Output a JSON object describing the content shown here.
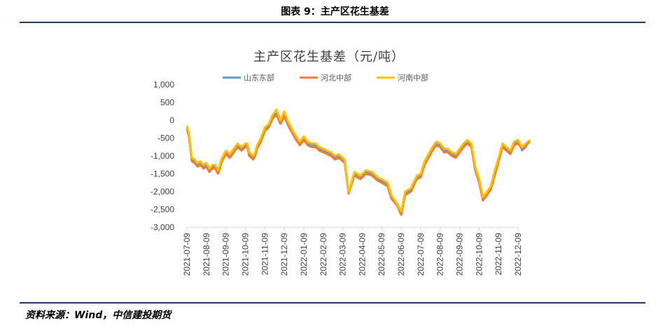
{
  "figure": {
    "caption": "图表 9：主产区花生基差",
    "source": "资料来源：Wind，中信建投期货"
  },
  "colors": {
    "rule": "#1f3864",
    "series": [
      "#5b9bd5",
      "#ed7d31",
      "#ffc000"
    ],
    "axis": "#d9d9d9"
  },
  "chart_data": {
    "type": "line",
    "title": "主产区花生基差（元/吨）",
    "xlabel": "",
    "ylabel": "",
    "ylim": [
      -3000,
      1000
    ],
    "yticks": [
      1000,
      500,
      0,
      -500,
      -1000,
      -1500,
      -2000,
      -2500,
      -3000
    ],
    "ytick_labels": [
      "1,000",
      "500",
      "0",
      "-500",
      "-1,000",
      "-1,500",
      "-2,000",
      "-2,500",
      "-3,000"
    ],
    "x_tick_labels": [
      "2021-07-09",
      "2021-08-09",
      "2021-09-09",
      "2021-10-09",
      "2021-11-09",
      "2021-12-09",
      "2022-01-09",
      "2022-02-09",
      "2022-03-09",
      "2022-04-09",
      "2022-05-09",
      "2022-06-09",
      "2022-07-09",
      "2022-08-09",
      "2022-09-09",
      "2022-10-09",
      "2022-11-09",
      "2022-12-09"
    ],
    "legend_position": "top",
    "series": [
      {
        "name": "山东东部",
        "points": [
          [
            0,
            -200
          ],
          [
            0.1,
            -400
          ],
          [
            0.25,
            -1100
          ],
          [
            0.4,
            -1150
          ],
          [
            0.55,
            -1250
          ],
          [
            0.7,
            -1200
          ],
          [
            0.85,
            -1300
          ],
          [
            1.0,
            -1250
          ],
          [
            1.15,
            -1400
          ],
          [
            1.3,
            -1300
          ],
          [
            1.45,
            -1300
          ],
          [
            1.6,
            -1450
          ],
          [
            1.8,
            -1100
          ],
          [
            2.0,
            -900
          ],
          [
            2.2,
            -1000
          ],
          [
            2.4,
            -850
          ],
          [
            2.6,
            -700
          ],
          [
            2.8,
            -800
          ],
          [
            3.0,
            -700
          ],
          [
            3.1,
            -700
          ],
          [
            3.2,
            -950
          ],
          [
            3.4,
            -1050
          ],
          [
            3.5,
            -950
          ],
          [
            3.6,
            -750
          ],
          [
            3.8,
            -550
          ],
          [
            4.0,
            -250
          ],
          [
            4.2,
            -150
          ],
          [
            4.4,
            100
          ],
          [
            4.6,
            200
          ],
          [
            4.8,
            -50
          ],
          [
            5.0,
            150
          ],
          [
            5.2,
            -100
          ],
          [
            5.4,
            -300
          ],
          [
            5.6,
            -500
          ],
          [
            5.8,
            -650
          ],
          [
            6.0,
            -500
          ],
          [
            6.2,
            -650
          ],
          [
            6.4,
            -700
          ],
          [
            6.6,
            -700
          ],
          [
            6.8,
            -800
          ],
          [
            7.0,
            -850
          ],
          [
            7.2,
            -900
          ],
          [
            7.4,
            -950
          ],
          [
            7.6,
            -1050
          ],
          [
            7.8,
            -1000
          ],
          [
            8.0,
            -1100
          ],
          [
            8.1,
            -1150
          ],
          [
            8.3,
            -2050
          ],
          [
            8.6,
            -1500
          ],
          [
            8.9,
            -1600
          ],
          [
            9.2,
            -1450
          ],
          [
            9.5,
            -1500
          ],
          [
            9.8,
            -1650
          ],
          [
            10.0,
            -1700
          ],
          [
            10.3,
            -1800
          ],
          [
            10.5,
            -2150
          ],
          [
            10.8,
            -2350
          ],
          [
            11.0,
            -2650
          ],
          [
            11.2,
            -2050
          ],
          [
            11.5,
            -1950
          ],
          [
            11.8,
            -1600
          ],
          [
            12.0,
            -1550
          ],
          [
            12.2,
            -1200
          ],
          [
            12.4,
            -1000
          ],
          [
            12.6,
            -800
          ],
          [
            12.8,
            -650
          ],
          [
            13.0,
            -700
          ],
          [
            13.2,
            -850
          ],
          [
            13.4,
            -850
          ],
          [
            13.6,
            -950
          ],
          [
            13.8,
            -1000
          ],
          [
            14.0,
            -850
          ],
          [
            14.2,
            -700
          ],
          [
            14.4,
            -600
          ],
          [
            14.6,
            -700
          ],
          [
            14.8,
            -1350
          ],
          [
            15.0,
            -1700
          ],
          [
            15.2,
            -2200
          ],
          [
            15.4,
            -2050
          ],
          [
            15.6,
            -1900
          ],
          [
            15.8,
            -1500
          ],
          [
            16.0,
            -1100
          ],
          [
            16.2,
            -700
          ],
          [
            16.4,
            -800
          ],
          [
            16.6,
            -900
          ],
          [
            16.8,
            -650
          ],
          [
            17.0,
            -600
          ],
          [
            17.2,
            -850
          ],
          [
            17.4,
            -750
          ],
          [
            17.6,
            -550
          ]
        ]
      },
      {
        "name": "河北中部",
        "points": [
          [
            0,
            -250
          ],
          [
            0.1,
            -450
          ],
          [
            0.25,
            -1150
          ],
          [
            0.4,
            -1200
          ],
          [
            0.55,
            -1300
          ],
          [
            0.7,
            -1250
          ],
          [
            0.85,
            -1350
          ],
          [
            1.0,
            -1300
          ],
          [
            1.15,
            -1450
          ],
          [
            1.3,
            -1350
          ],
          [
            1.45,
            -1350
          ],
          [
            1.6,
            -1500
          ],
          [
            1.8,
            -1150
          ],
          [
            2.0,
            -950
          ],
          [
            2.2,
            -1050
          ],
          [
            2.4,
            -900
          ],
          [
            2.6,
            -750
          ],
          [
            2.8,
            -850
          ],
          [
            3.0,
            -750
          ],
          [
            3.1,
            -750
          ],
          [
            3.2,
            -1000
          ],
          [
            3.4,
            -1100
          ],
          [
            3.5,
            -1000
          ],
          [
            3.6,
            -800
          ],
          [
            3.8,
            -600
          ],
          [
            4.0,
            -300
          ],
          [
            4.2,
            -200
          ],
          [
            4.4,
            50
          ],
          [
            4.6,
            150
          ],
          [
            4.8,
            -100
          ],
          [
            5.0,
            100
          ],
          [
            5.2,
            -150
          ],
          [
            5.4,
            -350
          ],
          [
            5.6,
            -550
          ],
          [
            5.8,
            -700
          ],
          [
            6.0,
            -550
          ],
          [
            6.2,
            -700
          ],
          [
            6.4,
            -750
          ],
          [
            6.6,
            -750
          ],
          [
            6.8,
            -850
          ],
          [
            7.0,
            -900
          ],
          [
            7.2,
            -950
          ],
          [
            7.4,
            -1000
          ],
          [
            7.6,
            -1100
          ],
          [
            7.8,
            -1050
          ],
          [
            8.0,
            -1150
          ],
          [
            8.1,
            -1200
          ],
          [
            8.3,
            -2050
          ],
          [
            8.6,
            -1550
          ],
          [
            8.9,
            -1650
          ],
          [
            9.2,
            -1500
          ],
          [
            9.5,
            -1550
          ],
          [
            9.8,
            -1700
          ],
          [
            10.0,
            -1750
          ],
          [
            10.3,
            -1850
          ],
          [
            10.5,
            -2200
          ],
          [
            10.8,
            -2400
          ],
          [
            11.0,
            -2650
          ],
          [
            11.2,
            -2100
          ],
          [
            11.5,
            -2000
          ],
          [
            11.8,
            -1650
          ],
          [
            12.0,
            -1600
          ],
          [
            12.2,
            -1250
          ],
          [
            12.4,
            -1050
          ],
          [
            12.6,
            -850
          ],
          [
            12.8,
            -700
          ],
          [
            13.0,
            -750
          ],
          [
            13.2,
            -900
          ],
          [
            13.4,
            -900
          ],
          [
            13.6,
            -1000
          ],
          [
            13.8,
            -1050
          ],
          [
            14.0,
            -900
          ],
          [
            14.2,
            -750
          ],
          [
            14.4,
            -650
          ],
          [
            14.6,
            -750
          ],
          [
            14.8,
            -1400
          ],
          [
            15.0,
            -1750
          ],
          [
            15.2,
            -2250
          ],
          [
            15.4,
            -2100
          ],
          [
            15.6,
            -1950
          ],
          [
            15.8,
            -1550
          ],
          [
            16.0,
            -1150
          ],
          [
            16.2,
            -750
          ],
          [
            16.4,
            -850
          ],
          [
            16.6,
            -950
          ],
          [
            16.8,
            -700
          ],
          [
            17.0,
            -650
          ],
          [
            17.2,
            -800
          ],
          [
            17.4,
            -700
          ],
          [
            17.6,
            -600
          ]
        ]
      },
      {
        "name": "河南中部",
        "points": [
          [
            0,
            -150
          ],
          [
            0.1,
            -350
          ],
          [
            0.25,
            -1050
          ],
          [
            0.4,
            -1100
          ],
          [
            0.55,
            -1200
          ],
          [
            0.7,
            -1150
          ],
          [
            0.85,
            -1250
          ],
          [
            1.0,
            -1200
          ],
          [
            1.15,
            -1350
          ],
          [
            1.3,
            -1250
          ],
          [
            1.45,
            -1250
          ],
          [
            1.6,
            -1400
          ],
          [
            1.8,
            -1050
          ],
          [
            2.0,
            -850
          ],
          [
            2.2,
            -950
          ],
          [
            2.4,
            -800
          ],
          [
            2.6,
            -650
          ],
          [
            2.8,
            -750
          ],
          [
            3.0,
            -650
          ],
          [
            3.1,
            -650
          ],
          [
            3.2,
            -900
          ],
          [
            3.4,
            -1000
          ],
          [
            3.5,
            -900
          ],
          [
            3.6,
            -700
          ],
          [
            3.8,
            -500
          ],
          [
            4.0,
            -200
          ],
          [
            4.2,
            -100
          ],
          [
            4.4,
            150
          ],
          [
            4.6,
            300
          ],
          [
            4.8,
            0
          ],
          [
            5.0,
            250
          ],
          [
            5.2,
            -50
          ],
          [
            5.4,
            -250
          ],
          [
            5.6,
            -450
          ],
          [
            5.8,
            -600
          ],
          [
            6.0,
            -450
          ],
          [
            6.2,
            -600
          ],
          [
            6.4,
            -650
          ],
          [
            6.6,
            -650
          ],
          [
            6.8,
            -750
          ],
          [
            7.0,
            -800
          ],
          [
            7.2,
            -850
          ],
          [
            7.4,
            -900
          ],
          [
            7.6,
            -1000
          ],
          [
            7.8,
            -950
          ],
          [
            8.0,
            -1050
          ],
          [
            8.1,
            -1100
          ],
          [
            8.3,
            -2000
          ],
          [
            8.6,
            -1450
          ],
          [
            8.9,
            -1550
          ],
          [
            9.2,
            -1400
          ],
          [
            9.5,
            -1450
          ],
          [
            9.8,
            -1600
          ],
          [
            10.0,
            -1650
          ],
          [
            10.3,
            -1750
          ],
          [
            10.5,
            -2100
          ],
          [
            10.8,
            -2350
          ],
          [
            11.0,
            -2550
          ],
          [
            11.2,
            -2000
          ],
          [
            11.5,
            -1900
          ],
          [
            11.8,
            -1550
          ],
          [
            12.0,
            -1500
          ],
          [
            12.2,
            -1150
          ],
          [
            12.4,
            -950
          ],
          [
            12.6,
            -750
          ],
          [
            12.8,
            -600
          ],
          [
            13.0,
            -650
          ],
          [
            13.2,
            -800
          ],
          [
            13.4,
            -800
          ],
          [
            13.6,
            -900
          ],
          [
            13.8,
            -950
          ],
          [
            14.0,
            -800
          ],
          [
            14.2,
            -650
          ],
          [
            14.4,
            -550
          ],
          [
            14.6,
            -650
          ],
          [
            14.8,
            -1300
          ],
          [
            15.0,
            -1650
          ],
          [
            15.2,
            -2150
          ],
          [
            15.4,
            -2000
          ],
          [
            15.6,
            -1850
          ],
          [
            15.8,
            -1400
          ],
          [
            16.0,
            -1050
          ],
          [
            16.2,
            -650
          ],
          [
            16.4,
            -750
          ],
          [
            16.6,
            -850
          ],
          [
            16.8,
            -600
          ],
          [
            17.0,
            -550
          ],
          [
            17.2,
            -750
          ],
          [
            17.4,
            -650
          ],
          [
            17.6,
            -550
          ]
        ]
      }
    ]
  }
}
